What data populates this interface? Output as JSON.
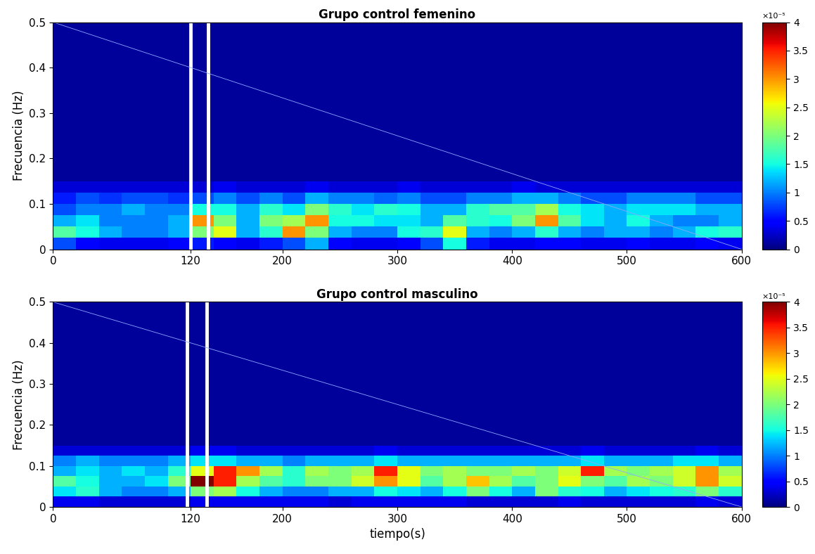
{
  "chart_data": [
    {
      "type": "heatmap",
      "title": "Grupo control femenino",
      "y_label": "Frecuencia (Hz)",
      "xlim": [
        0,
        600
      ],
      "xticks": [
        0,
        120,
        200,
        300,
        400,
        500,
        600
      ],
      "ylim": [
        0,
        0.5
      ],
      "yticks": [
        0,
        0.1,
        0.2,
        0.3,
        0.4,
        0.5
      ],
      "grid": false,
      "markers": [
        120,
        135
      ],
      "reference_line": {
        "x": [
          0,
          600
        ],
        "y": [
          0.5,
          0
        ]
      },
      "time_edges": [
        0,
        20,
        40,
        60,
        80,
        100,
        120,
        140,
        160,
        180,
        200,
        220,
        240,
        260,
        280,
        300,
        320,
        340,
        360,
        380,
        400,
        420,
        440,
        460,
        480,
        500,
        520,
        540,
        560,
        580,
        600
      ],
      "frequency_edges": [
        0,
        0.025,
        0.05,
        0.075,
        0.1,
        0.125,
        0.15,
        0.5
      ],
      "cells": [
        [
          0.8,
          0.5,
          0.4,
          0.4,
          0.4,
          0.5,
          0.6,
          0.5,
          0.4,
          0.6,
          0.8,
          1.2,
          0.5,
          0.4,
          0.4,
          0.5,
          0.8,
          1.5,
          0.6,
          0.4,
          0.4,
          0.5,
          0.5,
          0.4,
          0.4,
          0.5,
          0.4,
          0.4,
          0.5,
          0.4
        ],
        [
          1.8,
          1.5,
          1.2,
          1.0,
          1.0,
          1.2,
          2.0,
          2.5,
          1.2,
          1.6,
          3.0,
          2.0,
          1.2,
          1.0,
          1.0,
          1.5,
          1.6,
          2.5,
          1.2,
          1.0,
          1.2,
          1.6,
          1.2,
          1.0,
          1.2,
          1.2,
          1.0,
          1.2,
          1.5,
          1.6
        ],
        [
          1.2,
          1.4,
          1.0,
          1.0,
          1.0,
          1.2,
          3.0,
          2.0,
          1.2,
          2.0,
          2.2,
          3.0,
          1.5,
          1.5,
          1.4,
          1.4,
          1.2,
          1.8,
          1.6,
          1.5,
          2.0,
          3.0,
          1.8,
          1.4,
          1.2,
          1.5,
          1.2,
          1.0,
          1.0,
          1.2
        ],
        [
          0.8,
          1.0,
          1.0,
          1.2,
          1.0,
          1.0,
          1.5,
          1.5,
          1.2,
          1.6,
          1.4,
          2.0,
          1.6,
          1.4,
          1.6,
          1.5,
          1.2,
          1.2,
          1.6,
          1.8,
          1.8,
          2.2,
          1.5,
          1.4,
          1.2,
          1.4,
          1.4,
          1.4,
          1.2,
          1.2
        ],
        [
          0.6,
          0.8,
          0.7,
          0.8,
          0.8,
          0.7,
          0.8,
          1.0,
          0.8,
          1.0,
          0.8,
          1.2,
          1.0,
          1.0,
          0.9,
          1.0,
          0.8,
          0.8,
          1.0,
          1.0,
          1.2,
          1.2,
          1.0,
          0.8,
          0.8,
          1.0,
          1.0,
          1.0,
          0.8,
          0.8
        ],
        [
          0.3,
          0.3,
          0.3,
          0.3,
          0.3,
          0.3,
          0.3,
          0.4,
          0.3,
          0.3,
          0.3,
          0.4,
          0.3,
          0.3,
          0.3,
          0.4,
          0.3,
          0.3,
          0.3,
          0.3,
          0.4,
          0.3,
          0.3,
          0.3,
          0.3,
          0.3,
          0.3,
          0.3,
          0.3,
          0.3
        ],
        [
          0.1,
          0.1,
          0.1,
          0.1,
          0.1,
          0.1,
          0.1,
          0.1,
          0.1,
          0.1,
          0.1,
          0.1,
          0.1,
          0.1,
          0.1,
          0.1,
          0.1,
          0.1,
          0.1,
          0.1,
          0.1,
          0.1,
          0.1,
          0.1,
          0.1,
          0.1,
          0.1,
          0.1,
          0.1,
          0.1
        ]
      ],
      "colorbar_range": [
        0,
        4
      ],
      "colorbar_ticks": [
        0,
        0.5,
        1,
        1.5,
        2,
        2.5,
        3,
        3.5,
        4
      ],
      "colorbar_multiplier": "×10⁻⁵"
    },
    {
      "type": "heatmap",
      "title": "Grupo control masculino",
      "x_label": "tiempo(s)",
      "y_label": "Frecuencia (Hz)",
      "xlim": [
        0,
        600
      ],
      "xticks": [
        0,
        120,
        200,
        300,
        400,
        500,
        600
      ],
      "ylim": [
        0,
        0.5
      ],
      "yticks": [
        0,
        0.1,
        0.2,
        0.3,
        0.4,
        0.5
      ],
      "grid": false,
      "markers": [
        117,
        134
      ],
      "reference_line": {
        "x": [
          0,
          600
        ],
        "y": [
          0.5,
          0
        ]
      },
      "time_edges": [
        0,
        20,
        40,
        60,
        80,
        100,
        120,
        140,
        160,
        180,
        200,
        220,
        240,
        260,
        280,
        300,
        320,
        340,
        360,
        380,
        400,
        420,
        440,
        460,
        480,
        500,
        520,
        540,
        560,
        580,
        600
      ],
      "frequency_edges": [
        0,
        0.025,
        0.05,
        0.075,
        0.1,
        0.125,
        0.15,
        0.5
      ],
      "cells": [
        [
          0.4,
          0.4,
          0.3,
          0.3,
          0.3,
          0.3,
          0.4,
          0.4,
          0.4,
          0.4,
          0.4,
          0.4,
          0.3,
          0.4,
          0.4,
          0.4,
          0.4,
          0.4,
          0.3,
          0.3,
          0.3,
          0.3,
          0.4,
          0.3,
          0.3,
          0.3,
          0.3,
          0.3,
          0.4,
          0.3
        ],
        [
          1.4,
          1.6,
          1.2,
          1.0,
          1.0,
          1.2,
          2.0,
          2.2,
          1.5,
          1.2,
          1.0,
          1.0,
          1.2,
          1.2,
          1.5,
          1.4,
          1.2,
          1.5,
          2.0,
          1.5,
          1.2,
          2.0,
          1.6,
          1.5,
          1.2,
          1.4,
          1.5,
          1.6,
          2.0,
          1.6
        ],
        [
          1.8,
          1.5,
          1.2,
          1.2,
          1.4,
          2.0,
          4.0,
          3.5,
          2.2,
          1.8,
          1.6,
          2.0,
          2.0,
          2.4,
          3.0,
          2.5,
          1.8,
          2.2,
          2.8,
          2.2,
          1.8,
          2.0,
          2.5,
          2.0,
          1.8,
          2.2,
          2.0,
          2.4,
          3.0,
          2.4
        ],
        [
          1.2,
          1.4,
          1.2,
          1.4,
          1.2,
          1.6,
          2.5,
          3.5,
          3.0,
          2.2,
          1.6,
          2.2,
          2.0,
          2.2,
          3.5,
          2.5,
          2.0,
          2.2,
          2.0,
          2.0,
          2.2,
          2.0,
          2.4,
          3.5,
          2.2,
          2.0,
          2.2,
          2.4,
          3.0,
          2.2
        ],
        [
          1.0,
          1.2,
          1.0,
          1.0,
          1.0,
          1.2,
          1.4,
          1.4,
          1.2,
          1.2,
          1.0,
          1.2,
          1.2,
          1.2,
          1.4,
          1.2,
          1.2,
          1.2,
          1.2,
          1.2,
          1.2,
          1.2,
          1.2,
          1.4,
          1.2,
          1.2,
          1.2,
          1.4,
          1.4,
          1.2
        ],
        [
          0.3,
          0.3,
          0.3,
          0.3,
          0.3,
          0.3,
          0.4,
          0.4,
          0.3,
          0.3,
          0.3,
          0.3,
          0.3,
          0.3,
          0.4,
          0.3,
          0.3,
          0.3,
          0.3,
          0.3,
          0.3,
          0.3,
          0.3,
          0.4,
          0.3,
          0.3,
          0.3,
          0.3,
          0.4,
          0.3
        ],
        [
          0.1,
          0.1,
          0.1,
          0.1,
          0.1,
          0.1,
          0.1,
          0.1,
          0.1,
          0.1,
          0.1,
          0.1,
          0.1,
          0.1,
          0.1,
          0.1,
          0.1,
          0.1,
          0.1,
          0.1,
          0.1,
          0.1,
          0.1,
          0.1,
          0.1,
          0.1,
          0.1,
          0.1,
          0.1,
          0.1
        ]
      ],
      "colorbar_range": [
        0,
        4
      ],
      "colorbar_ticks": [
        0,
        0.5,
        1,
        1.5,
        2,
        2.5,
        3,
        3.5,
        4
      ],
      "colorbar_multiplier": "×10⁻⁵"
    }
  ]
}
